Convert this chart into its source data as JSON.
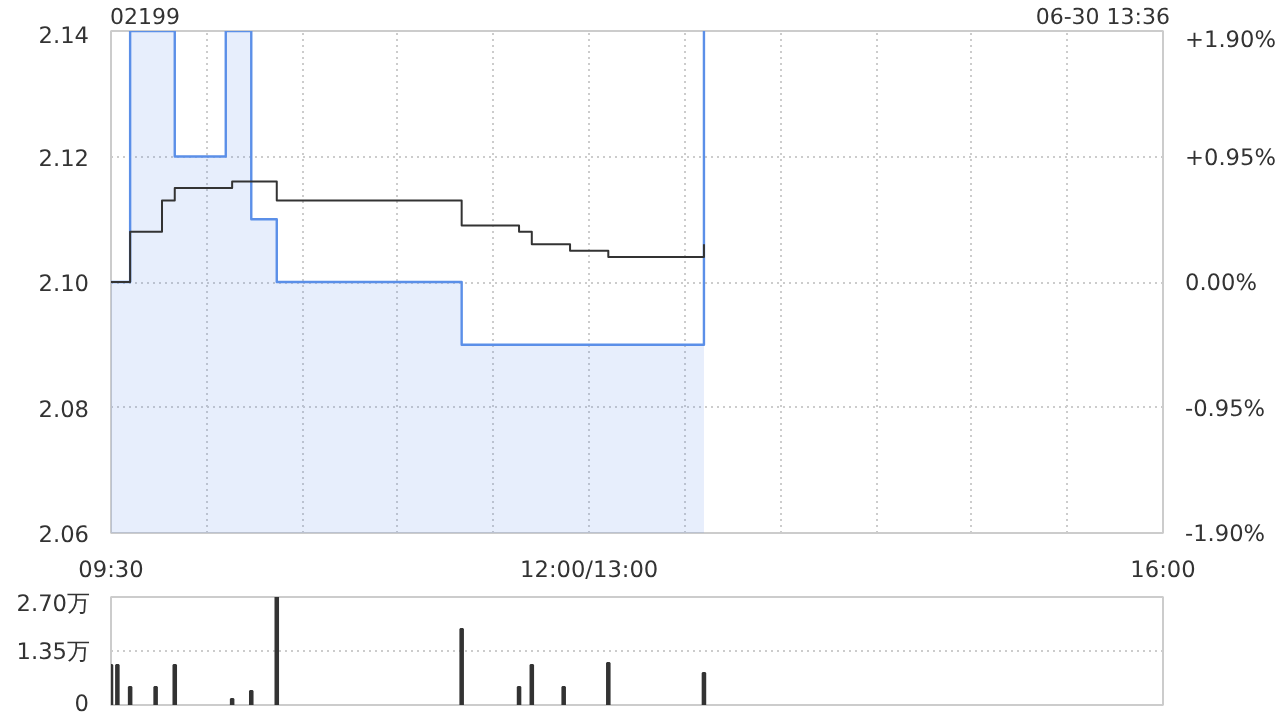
{
  "chart_data": [
    {
      "type": "step",
      "title": "02199",
      "annotations": [
        "06-30 13:36"
      ],
      "categories": [
        "09:30",
        null,
        null,
        null,
        null,
        null,
        null,
        null,
        null,
        null,
        null,
        null,
        null,
        null,
        null,
        null,
        null,
        null,
        null,
        null,
        null,
        null,
        null,
        null,
        null,
        null,
        null,
        null,
        null,
        null,
        null,
        null,
        null,
        null,
        null,
        null,
        null,
        null,
        null,
        null,
        null,
        null,
        null,
        null,
        null,
        null,
        null,
        null,
        null,
        null,
        null,
        null,
        null,
        null,
        null,
        null,
        null,
        null,
        null,
        null,
        null,
        null,
        null,
        null,
        null,
        null,
        null,
        null,
        null,
        null,
        null,
        null,
        null,
        null,
        null,
        "12:00/13:00",
        null,
        null,
        null,
        null,
        null,
        null,
        null,
        null,
        null,
        null,
        null,
        null,
        null,
        null,
        null,
        null,
        null,
        null,
        null,
        null,
        null,
        null,
        null,
        null,
        null,
        null,
        null,
        null,
        null,
        null,
        null,
        null,
        null,
        null,
        null,
        null,
        null,
        null,
        null,
        null,
        null,
        null,
        null,
        null,
        null,
        null,
        null,
        null,
        null,
        null,
        null,
        null,
        null,
        null,
        null,
        null,
        null,
        null,
        null,
        null,
        null,
        null,
        null,
        null,
        null,
        null,
        null,
        null,
        null,
        null,
        null,
        null,
        null,
        null,
        null,
        null,
        null,
        null,
        null,
        null,
        null,
        null,
        null,
        null,
        null,
        null,
        null,
        null,
        null,
        "16:00"
      ],
      "ylim": [
        2.06,
        2.14
      ],
      "yticks": [
        {
          "value": 2.06,
          "label": "2.06"
        },
        {
          "value": 2.08,
          "label": "2.08"
        },
        {
          "value": 2.1,
          "label": "2.10"
        },
        {
          "value": 2.12,
          "label": "2.12"
        },
        {
          "value": 2.14,
          "label": "2.14"
        }
      ],
      "y2lim": [
        -1.9,
        1.9
      ],
      "y2ticks": [
        {
          "value": -1.9,
          "label": "-1.90%"
        },
        {
          "value": -0.95,
          "label": "-0.95%"
        },
        {
          "value": 0,
          "label": "0.00%"
        },
        {
          "value": 0.95,
          "label": "+0.95%"
        },
        {
          "value": 1.9,
          "label": "+1.90%"
        }
      ],
      "grid": true,
      "series": [
        {
          "type": "area",
          "color": "#5b8fe8",
          "values": [
            2.1,
            2.1,
            2.1,
            2.14,
            2.14,
            2.14,
            2.14,
            2.14,
            2.14,
            2.14,
            2.12,
            2.12,
            2.12,
            2.12,
            2.12,
            2.12,
            2.12,
            2.12,
            2.14,
            2.14,
            2.14,
            2.14,
            2.11,
            2.11,
            2.11,
            2.11,
            2.1,
            2.1,
            2.1,
            2.1,
            2.1,
            2.1,
            2.1,
            2.1,
            2.1,
            2.1,
            2.1,
            2.1,
            2.1,
            2.1,
            2.1,
            2.1,
            2.1,
            2.1,
            2.1,
            2.1,
            2.1,
            2.1,
            2.1,
            2.1,
            2.1,
            2.1,
            2.1,
            2.1,
            2.1,
            2.09,
            2.09,
            2.09,
            2.09,
            2.09,
            2.09,
            2.09,
            2.09,
            2.09,
            2.09,
            2.09,
            2.09,
            2.09,
            2.09,
            2.09,
            2.09,
            2.09,
            2.09,
            2.09,
            2.09,
            2.09,
            2.09,
            2.09,
            2.09,
            2.09,
            2.09,
            2.09,
            2.09,
            2.09,
            2.09,
            2.09,
            2.09,
            2.09,
            2.09,
            2.09,
            2.09,
            2.09,
            2.09,
            2.14,
            null,
            null,
            null,
            null,
            null,
            null,
            null,
            null,
            null,
            null,
            null,
            null,
            null,
            null,
            null,
            null,
            null,
            null,
            null,
            null,
            null,
            null,
            null,
            null,
            null,
            null,
            null,
            null,
            null,
            null,
            null,
            null,
            null,
            null,
            null,
            null,
            null,
            null,
            null,
            null,
            null,
            null,
            null,
            null,
            null,
            null,
            null,
            null,
            null,
            null,
            null,
            null,
            null,
            null,
            null,
            null,
            null,
            null,
            null,
            null,
            null,
            null,
            null,
            null,
            null,
            null,
            null,
            null,
            null,
            null,
            null,
            null
          ]
        },
        {
          "type": "step",
          "color": "#333333",
          "values": [
            2.1,
            2.1,
            2.1,
            2.108,
            2.108,
            2.108,
            2.108,
            2.108,
            2.113,
            2.113,
            2.115,
            2.115,
            2.115,
            2.115,
            2.115,
            2.115,
            2.115,
            2.115,
            2.115,
            2.116,
            2.116,
            2.116,
            2.116,
            2.116,
            2.116,
            2.116,
            2.113,
            2.113,
            2.113,
            2.113,
            2.113,
            2.113,
            2.113,
            2.113,
            2.113,
            2.113,
            2.113,
            2.113,
            2.113,
            2.113,
            2.113,
            2.113,
            2.113,
            2.113,
            2.113,
            2.113,
            2.113,
            2.113,
            2.113,
            2.113,
            2.113,
            2.113,
            2.113,
            2.113,
            2.113,
            2.109,
            2.109,
            2.109,
            2.109,
            2.109,
            2.109,
            2.109,
            2.109,
            2.109,
            2.108,
            2.108,
            2.106,
            2.106,
            2.106,
            2.106,
            2.106,
            2.106,
            2.105,
            2.105,
            2.105,
            2.105,
            2.105,
            2.105,
            2.104,
            2.104,
            2.104,
            2.104,
            2.104,
            2.104,
            2.104,
            2.104,
            2.104,
            2.104,
            2.104,
            2.104,
            2.104,
            2.104,
            2.104,
            2.106,
            null,
            null,
            null,
            null,
            null,
            null,
            null,
            null,
            null,
            null,
            null,
            null,
            null,
            null,
            null,
            null,
            null,
            null,
            null,
            null,
            null,
            null,
            null,
            null,
            null,
            null,
            null,
            null,
            null,
            null,
            null,
            null,
            null,
            null,
            null,
            null,
            null,
            null,
            null,
            null,
            null,
            null,
            null,
            null,
            null,
            null,
            null,
            null,
            null,
            null,
            null,
            null,
            null,
            null,
            null,
            null,
            null,
            null,
            null,
            null,
            null,
            null,
            null,
            null,
            null,
            null,
            null,
            null,
            null,
            null,
            null,
            null
          ]
        }
      ]
    },
    {
      "type": "bar",
      "ylim": [
        0,
        2.7
      ],
      "yticks": [
        {
          "value": 0,
          "label": "0"
        },
        {
          "value": 1.35,
          "label": "1.35万"
        },
        {
          "value": 2.7,
          "label": "2.70万"
        }
      ],
      "grid": "y",
      "color": "#333333",
      "categories": [
        null,
        null,
        null,
        null,
        null,
        null,
        null,
        null,
        null,
        null,
        null,
        null,
        null,
        null,
        null,
        null,
        null,
        null,
        null,
        null,
        null,
        null,
        null,
        null,
        null,
        null,
        null,
        null,
        null,
        null,
        null,
        null,
        null,
        null,
        null,
        null,
        null,
        null,
        null,
        null,
        null,
        null,
        null,
        null,
        null,
        null,
        null,
        null,
        null,
        null,
        null,
        null,
        null,
        null,
        null,
        null,
        null,
        null,
        null,
        null,
        null,
        null,
        null,
        null,
        null,
        null,
        null,
        null,
        null,
        null,
        null,
        null,
        null,
        null,
        null,
        null,
        null,
        null,
        null,
        null,
        null,
        null,
        null,
        null,
        null,
        null,
        null,
        null,
        null,
        null,
        null,
        null,
        null,
        null,
        null,
        null,
        null,
        null,
        null,
        null,
        null,
        null,
        null,
        null,
        null,
        null,
        null,
        null,
        null,
        null,
        null,
        null,
        null,
        null,
        null,
        null,
        null,
        null,
        null,
        null,
        null,
        null,
        null,
        null,
        null,
        null,
        null,
        null,
        null,
        null,
        null,
        null,
        null,
        null,
        null,
        null,
        null,
        null,
        null,
        null,
        null,
        null,
        null,
        null,
        null,
        null,
        null,
        null,
        null,
        null,
        null,
        null,
        null,
        null,
        null,
        null,
        null,
        null,
        null,
        null,
        null,
        null,
        null,
        null,
        null,
        null
      ],
      "values": [
        1,
        1,
        null,
        0.45,
        null,
        null,
        null,
        0.45,
        null,
        null,
        1,
        null,
        null,
        null,
        null,
        null,
        null,
        null,
        null,
        0.15,
        null,
        null,
        0.35,
        null,
        null,
        null,
        2.7,
        null,
        null,
        null,
        null,
        null,
        null,
        null,
        null,
        null,
        null,
        null,
        null,
        null,
        null,
        null,
        null,
        null,
        null,
        null,
        null,
        null,
        null,
        null,
        null,
        null,
        null,
        null,
        null,
        1.9,
        null,
        null,
        null,
        null,
        null,
        null,
        null,
        null,
        0.45,
        null,
        1,
        null,
        null,
        null,
        null,
        0.45,
        null,
        null,
        null,
        null,
        null,
        null,
        1.05,
        null,
        null,
        null,
        null,
        null,
        null,
        null,
        null,
        null,
        null,
        null,
        null,
        null,
        null,
        0.8,
        null,
        null,
        null,
        null,
        null,
        null,
        null,
        null,
        null,
        null,
        null,
        null,
        null,
        null,
        null,
        null,
        null,
        null,
        null,
        null,
        null,
        null,
        null,
        null,
        null,
        null,
        null,
        null,
        null,
        null,
        null,
        null,
        null,
        null,
        null,
        null,
        null,
        null,
        null,
        null,
        null,
        null,
        null,
        null,
        null,
        null,
        null,
        null,
        null,
        null,
        null,
        null,
        null,
        null,
        null,
        null,
        null,
        null,
        null,
        null,
        null,
        null,
        null,
        null,
        null,
        null,
        null,
        null,
        null,
        null,
        null,
        null
      ]
    }
  ]
}
